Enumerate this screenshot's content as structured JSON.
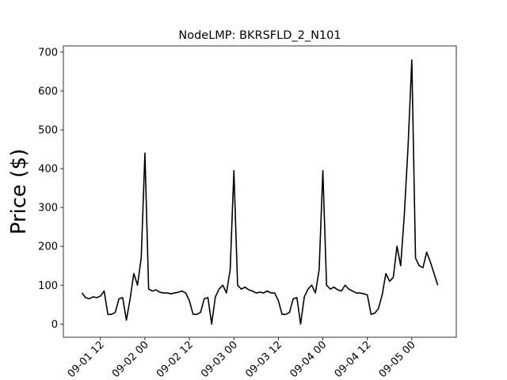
{
  "chart_data": {
    "type": "line",
    "title": "NodeLMP: BKRSFLD_2_N101",
    "ylabel": "Price ($)",
    "color": "#000000",
    "x": [
      "09-01 07",
      "09-01 08",
      "09-01 09",
      "09-01 10",
      "09-01 11",
      "09-01 12",
      "09-01 13",
      "09-01 14",
      "09-01 15",
      "09-01 16",
      "09-01 17",
      "09-01 18",
      "09-01 19",
      "09-01 20",
      "09-01 21",
      "09-01 22",
      "09-01 23",
      "09-02 00",
      "09-02 01",
      "09-02 02",
      "09-02 03",
      "09-02 04",
      "09-02 05",
      "09-02 06",
      "09-02 07",
      "09-02 08",
      "09-02 09",
      "09-02 10",
      "09-02 11",
      "09-02 12",
      "09-02 13",
      "09-02 14",
      "09-02 15",
      "09-02 16",
      "09-02 17",
      "09-02 18",
      "09-02 19",
      "09-02 20",
      "09-02 21",
      "09-02 22",
      "09-02 23",
      "09-03 00",
      "09-03 01",
      "09-03 02",
      "09-03 03",
      "09-03 04",
      "09-03 05",
      "09-03 06",
      "09-03 07",
      "09-03 08",
      "09-03 09",
      "09-03 10",
      "09-03 11",
      "09-03 12",
      "09-03 13",
      "09-03 14",
      "09-03 15",
      "09-03 16",
      "09-03 17",
      "09-03 18",
      "09-03 19",
      "09-03 20",
      "09-03 21",
      "09-03 22",
      "09-03 23",
      "09-04 00",
      "09-04 01",
      "09-04 02",
      "09-04 03",
      "09-04 04",
      "09-04 05",
      "09-04 06",
      "09-04 07",
      "09-04 08",
      "09-04 09",
      "09-04 10",
      "09-04 11",
      "09-04 12",
      "09-04 13",
      "09-04 14",
      "09-04 15",
      "09-04 16",
      "09-04 17",
      "09-04 18",
      "09-04 19",
      "09-04 20",
      "09-04 21",
      "09-04 22",
      "09-04 23",
      "09-05 00",
      "09-05 01",
      "09-05 02",
      "09-05 03",
      "09-05 04",
      "09-05 05",
      "09-05 06",
      "09-05 07"
    ],
    "values": [
      80,
      68,
      65,
      70,
      68,
      72,
      85,
      25,
      25,
      30,
      65,
      68,
      10,
      65,
      130,
      100,
      170,
      440,
      90,
      85,
      88,
      82,
      80,
      80,
      78,
      80,
      82,
      85,
      80,
      60,
      25,
      25,
      30,
      65,
      68,
      0,
      70,
      90,
      100,
      80,
      140,
      395,
      100,
      90,
      95,
      88,
      85,
      80,
      82,
      80,
      85,
      80,
      80,
      60,
      25,
      25,
      30,
      65,
      68,
      0,
      70,
      90,
      100,
      80,
      140,
      395,
      100,
      90,
      95,
      88,
      85,
      100,
      90,
      85,
      80,
      80,
      78,
      75,
      25,
      28,
      40,
      75,
      130,
      110,
      120,
      200,
      150,
      285,
      460,
      680,
      170,
      150,
      145,
      185,
      160,
      130,
      100
    ],
    "xlim": [
      "09-01 02",
      "09-05 12"
    ],
    "xticks": [
      "09-01 12",
      "09-02 00",
      "09-02 12",
      "09-03 00",
      "09-03 12",
      "09-04 00",
      "09-04 12",
      "09-05 00"
    ],
    "ylim": [
      -34,
      716
    ],
    "yticks": [
      0,
      100,
      200,
      300,
      400,
      500,
      600,
      700
    ]
  }
}
